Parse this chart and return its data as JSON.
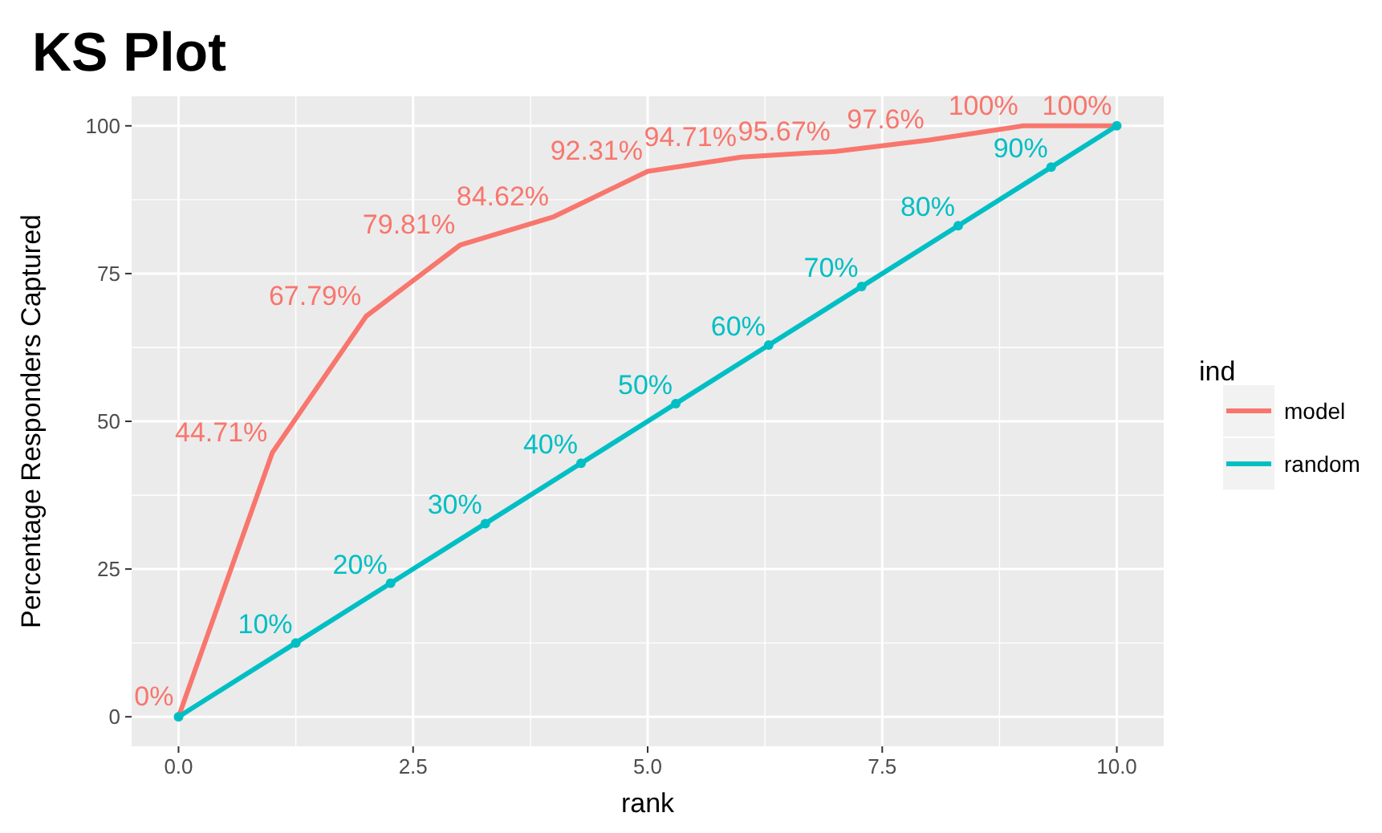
{
  "chart_data": {
    "type": "line",
    "title": "KS Plot",
    "xlabel": "rank",
    "ylabel": "Percentage Responders Captured",
    "legend_title": "ind",
    "x": [
      0,
      1,
      2,
      3,
      4,
      5,
      6,
      7,
      8,
      9,
      10
    ],
    "series": [
      {
        "name": "model",
        "color": "#f8766d",
        "marker": "none",
        "values": [
          0,
          44.71,
          67.79,
          79.81,
          84.62,
          92.31,
          94.71,
          95.67,
          97.6,
          100,
          100
        ],
        "value_labels": [
          "0%",
          "44.71%",
          "67.79%",
          "79.81%",
          "84.62%",
          "92.31%",
          "94.71%",
          "95.67%",
          "97.6%",
          "100%",
          "100%"
        ]
      },
      {
        "name": "random",
        "color": "#00bfc4",
        "marker": "circle",
        "x": [
          0,
          1.25,
          2.26,
          3.27,
          4.29,
          5.3,
          6.29,
          7.28,
          8.31,
          9.3,
          10
        ],
        "values": [
          0,
          12.5,
          22.6,
          32.7,
          42.9,
          53,
          62.9,
          72.8,
          83.1,
          93,
          100
        ]
      }
    ],
    "annotations": [
      {
        "text": "10%",
        "x": 1.25,
        "y": 12.5
      },
      {
        "text": "20%",
        "x": 2.26,
        "y": 22.6
      },
      {
        "text": "30%",
        "x": 3.27,
        "y": 32.7
      },
      {
        "text": "40%",
        "x": 4.29,
        "y": 42.9
      },
      {
        "text": "50%",
        "x": 5.3,
        "y": 53
      },
      {
        "text": "60%",
        "x": 6.29,
        "y": 62.9
      },
      {
        "text": "70%",
        "x": 7.28,
        "y": 72.8
      },
      {
        "text": "80%",
        "x": 8.31,
        "y": 83.1
      },
      {
        "text": "90%",
        "x": 9.3,
        "y": 93
      }
    ],
    "xlim": [
      -0.5,
      10.5
    ],
    "xticks": [
      {
        "value": 0,
        "label": "0.0"
      },
      {
        "value": 2.5,
        "label": "2.5"
      },
      {
        "value": 5,
        "label": "5.0"
      },
      {
        "value": 7.5,
        "label": "7.5"
      },
      {
        "value": 10,
        "label": "10.0"
      }
    ],
    "ylim": [
      -5,
      105
    ],
    "yticks": [
      0,
      25,
      50,
      75,
      100
    ],
    "grid": true,
    "legend": "right",
    "line_style": "solid"
  }
}
